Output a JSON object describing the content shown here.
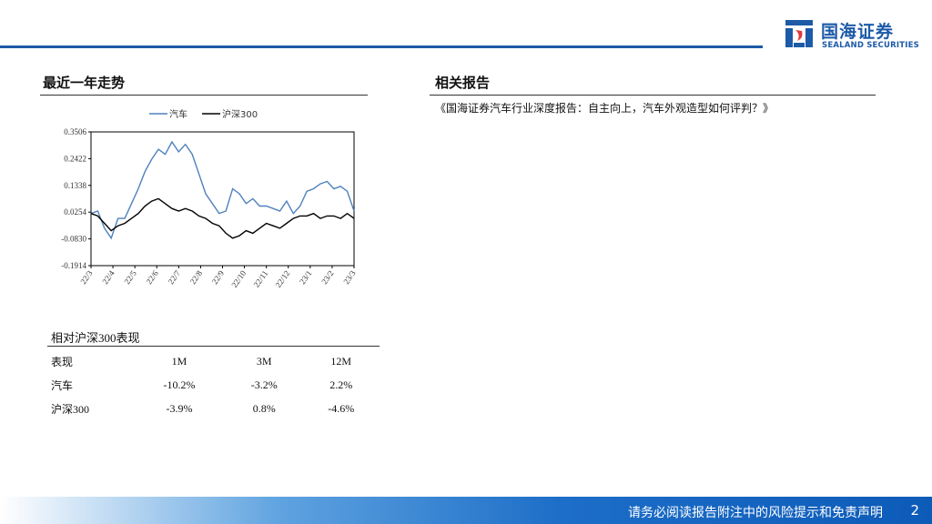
{
  "header": {
    "brand_cn": "国海证券",
    "brand_en": "SEALAND SECURITIES",
    "accent_color": "#1d5aa8"
  },
  "left_section": {
    "title": "最近一年走势"
  },
  "right_section": {
    "title": "相关报告",
    "reports": [
      "《国海证券汽车行业深度报告：自主向上，汽车外观造型如何评判？》"
    ]
  },
  "chart_data": {
    "type": "line",
    "title": "",
    "xlabel": "",
    "ylabel": "",
    "x_ticks": [
      "22/3",
      "22/4",
      "22/5",
      "22/6",
      "22/7",
      "22/8",
      "22/9",
      "22/10",
      "22/11",
      "22/12",
      "23/1",
      "23/2",
      "23/3"
    ],
    "y_ticks": [
      "0.3506",
      "0.2422",
      "0.1338",
      "0.0254",
      "-0.0830",
      "-0.1914"
    ],
    "ylim": [
      -0.1914,
      0.3506
    ],
    "legend_position": "top",
    "series": [
      {
        "name": "汽车",
        "color": "#4f81bd",
        "values": [
          0.02,
          0.03,
          -0.04,
          -0.08,
          0.0,
          0.0,
          0.06,
          0.12,
          0.19,
          0.24,
          0.28,
          0.26,
          0.31,
          0.27,
          0.3,
          0.26,
          0.18,
          0.1,
          0.06,
          0.02,
          0.03,
          0.12,
          0.1,
          0.06,
          0.08,
          0.05,
          0.05,
          0.04,
          0.03,
          0.07,
          0.02,
          0.05,
          0.11,
          0.12,
          0.14,
          0.15,
          0.12,
          0.13,
          0.11,
          0.03
        ]
      },
      {
        "name": "沪深300",
        "color": "#000000",
        "values": [
          0.02,
          0.01,
          -0.02,
          -0.05,
          -0.03,
          -0.02,
          0.0,
          0.02,
          0.05,
          0.07,
          0.08,
          0.06,
          0.04,
          0.03,
          0.04,
          0.03,
          0.01,
          0.0,
          -0.02,
          -0.03,
          -0.06,
          -0.08,
          -0.07,
          -0.05,
          -0.06,
          -0.04,
          -0.02,
          -0.03,
          -0.04,
          -0.02,
          0.0,
          0.01,
          0.01,
          0.02,
          0.0,
          0.01,
          0.01,
          0.0,
          0.02,
          0.0
        ]
      }
    ]
  },
  "performance": {
    "title": "相对沪深300表现",
    "columns": [
      "表现",
      "1M",
      "3M",
      "12M"
    ],
    "rows": [
      {
        "label": "汽车",
        "m1": "-10.2%",
        "m3": "-3.2%",
        "m12": "2.2%"
      },
      {
        "label": "沪深300",
        "m1": "-3.9%",
        "m3": "0.8%",
        "m12": "-4.6%"
      }
    ]
  },
  "footer": {
    "disclaimer": "请务必阅读报告附注中的风险提示和免责声明",
    "page_number": "2"
  }
}
